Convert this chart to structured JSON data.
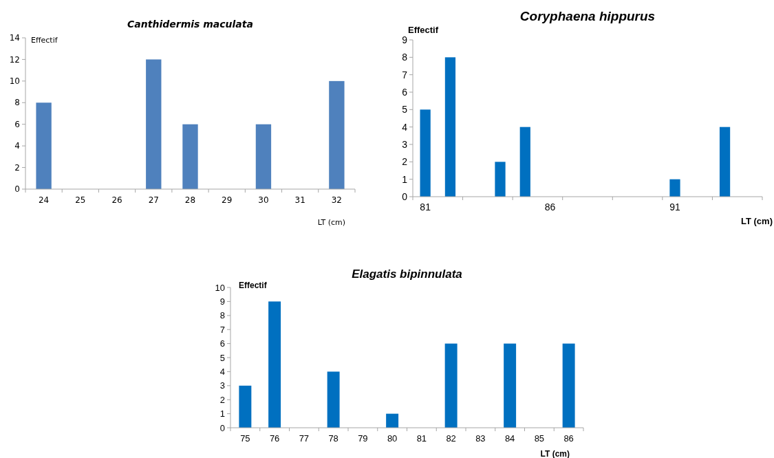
{
  "chart_data": [
    {
      "type": "bar",
      "title": "Canthidermis maculata",
      "ylabel": "Effectif",
      "xlabel": "LT (cm)",
      "categories": [
        "24",
        "25",
        "26",
        "27",
        "28",
        "29",
        "30",
        "31",
        "32"
      ],
      "values": [
        8,
        0,
        0,
        12,
        6,
        0,
        6,
        0,
        10
      ],
      "color": "#4f81bd",
      "ylim": [
        0,
        14
      ],
      "yticks": [
        0,
        2,
        4,
        6,
        8,
        10,
        12,
        14
      ],
      "grid": false
    },
    {
      "type": "bar",
      "title": "Coryphaena hippurus",
      "ylabel": "Effectif",
      "xlabel": "LT (cm)",
      "categories": [
        "81",
        null,
        null,
        null,
        null,
        "86",
        null,
        null,
        null,
        null,
        "91",
        null,
        null,
        null
      ],
      "values": [
        5,
        8,
        0,
        2,
        4,
        0,
        0,
        0,
        0,
        0,
        1,
        0,
        4,
        0
      ],
      "color": "#0070c0",
      "ylim": [
        0,
        9
      ],
      "yticks": [
        0,
        1,
        2,
        3,
        4,
        5,
        6,
        7,
        8,
        9
      ],
      "grid": false
    },
    {
      "type": "bar",
      "title": "Elagatis bipinnulata",
      "ylabel": "Effectif",
      "xlabel": "LT (cm)",
      "categories": [
        "75",
        "76",
        "77",
        "78",
        "79",
        "80",
        "81",
        "82",
        "83",
        "84",
        "85",
        "86"
      ],
      "values": [
        3,
        9,
        0,
        4,
        0,
        1,
        0,
        6,
        0,
        6,
        0,
        6
      ],
      "color": "#0070c0",
      "ylim": [
        0,
        10
      ],
      "yticks": [
        0,
        1,
        2,
        3,
        4,
        5,
        6,
        7,
        8,
        9,
        10
      ],
      "grid": false
    }
  ]
}
